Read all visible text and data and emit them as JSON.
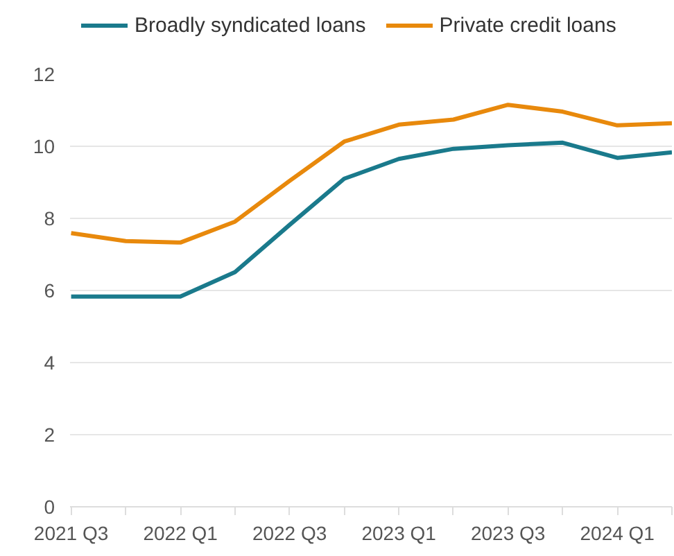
{
  "chart_data": {
    "type": "line",
    "categories": [
      "2021 Q3",
      null,
      "2022 Q1",
      null,
      "2022 Q3",
      null,
      "2023 Q1",
      null,
      "2023 Q3",
      null,
      "2024 Q1",
      null
    ],
    "series": [
      {
        "name": "Broadly syndicated loans",
        "color": "#1a7a8c",
        "values": [
          5.83,
          5.83,
          5.83,
          6.51,
          7.82,
          9.1,
          9.65,
          9.93,
          10.03,
          10.1,
          9.68,
          9.83
        ]
      },
      {
        "name": "Private credit loans",
        "color": "#e8890c",
        "values": [
          7.59,
          7.37,
          7.33,
          7.91,
          9.04,
          10.13,
          10.6,
          10.74,
          11.15,
          10.96,
          10.58,
          10.64
        ]
      }
    ],
    "ylim": [
      0,
      12
    ],
    "yticks": [
      0,
      2,
      4,
      6,
      8,
      10,
      12
    ],
    "grid": "y",
    "legend": "top left",
    "marker": "none",
    "line_style": "solid"
  }
}
